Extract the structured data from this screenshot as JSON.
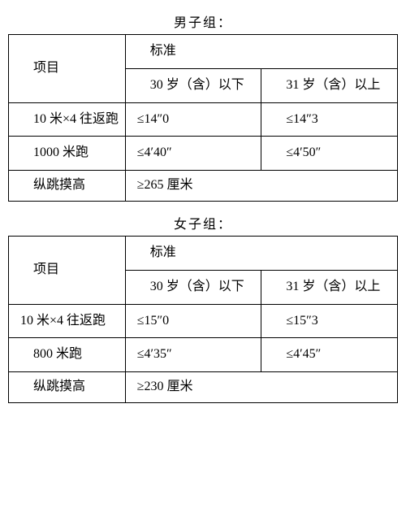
{
  "male": {
    "title": "男子组：",
    "header_item": "项目",
    "header_std": "标准",
    "header_age1": "　30 岁（含）以下",
    "header_age2": "　31 岁（含）以上",
    "rows": [
      {
        "item": "　10 米×4 往返跑",
        "v1": "≤14″0",
        "v2": "　≤14″3",
        "span": false
      },
      {
        "item": "　1000 米跑",
        "v1": "≤4′40″",
        "v2": "　≤4′50″",
        "span": false
      },
      {
        "item": "　纵跳摸高",
        "v1": "≥265 厘米",
        "v2": "",
        "span": true
      }
    ]
  },
  "female": {
    "title": "女子组：",
    "header_item": "项目",
    "header_std": "标准",
    "header_age1": "　30 岁（含）以下",
    "header_age2": "　31 岁（含）以上",
    "rows": [
      {
        "item": "10 米×4 往返跑",
        "v1": "≤15″0",
        "v2": "　≤15″3",
        "span": false
      },
      {
        "item": "　800 米跑",
        "v1": "≤4′35″",
        "v2": "　≤4′45″",
        "span": false
      },
      {
        "item": "　纵跳摸高",
        "v1": "≥230 厘米",
        "v2": "",
        "span": true
      }
    ]
  }
}
